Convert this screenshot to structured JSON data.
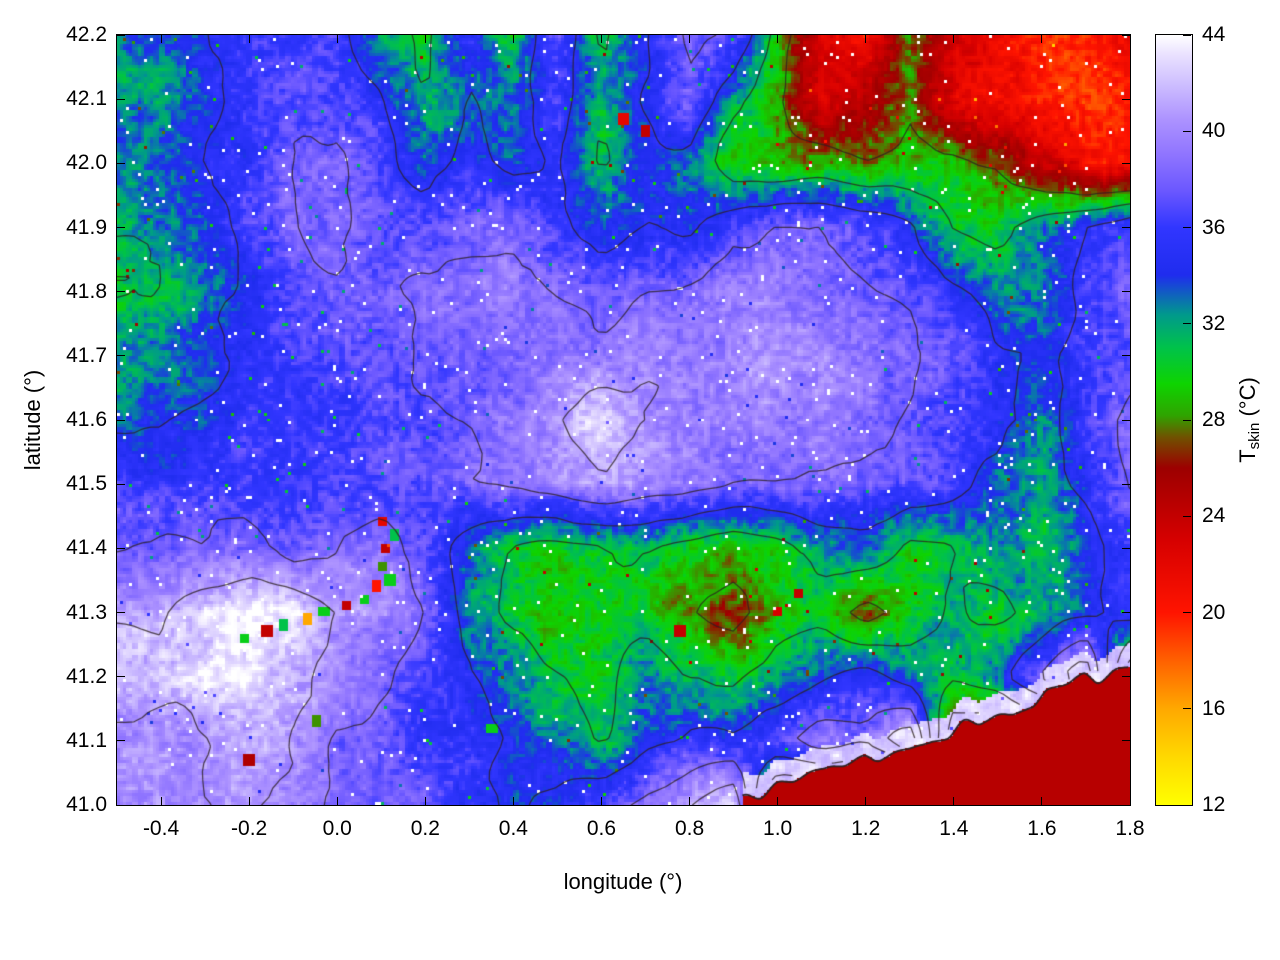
{
  "background": "#ffffff",
  "chart_data": {
    "type": "heatmap",
    "xlabel": "longitude (°)",
    "ylabel": "latitude (°)",
    "cblabel": {
      "prefix": "T",
      "sub": "skin",
      "suffix": " (°C)"
    },
    "xlim": [
      -0.5,
      1.8
    ],
    "ylim": [
      41.0,
      42.2
    ],
    "clim": [
      12,
      44
    ],
    "xticks": {
      "values": [
        -0.4,
        -0.2,
        0.0,
        0.2,
        0.4,
        0.6,
        0.8,
        1.0,
        1.2,
        1.4,
        1.6,
        1.8
      ],
      "labels": [
        "-0.4",
        "-0.2",
        "0.0",
        "0.2",
        "0.4",
        "0.6",
        "0.8",
        "1.0",
        "1.2",
        "1.4",
        "1.6",
        "1.8"
      ]
    },
    "yticks": {
      "values": [
        41.0,
        41.1,
        41.2,
        41.3,
        41.4,
        41.5,
        41.6,
        41.7,
        41.8,
        41.9,
        42.0,
        42.1,
        42.2
      ],
      "labels": [
        "41.0",
        "41.1",
        "41.2",
        "41.3",
        "41.4",
        "41.5",
        "41.6",
        "41.7",
        "41.8",
        "41.9",
        "42.0",
        "42.1",
        "42.2"
      ]
    },
    "cbticks": {
      "values": [
        12,
        16,
        20,
        24,
        28,
        32,
        36,
        40,
        44
      ],
      "labels": [
        "12",
        "16",
        "20",
        "24",
        "28",
        "32",
        "36",
        "40",
        "44"
      ]
    },
    "palette": [
      [
        12,
        "#ffff00"
      ],
      [
        14,
        "#ffd800"
      ],
      [
        16,
        "#ffa800"
      ],
      [
        18,
        "#ff6000"
      ],
      [
        20,
        "#ff1400"
      ],
      [
        23,
        "#d60000"
      ],
      [
        26,
        "#9c0000"
      ],
      [
        27.3,
        "#6f5200"
      ],
      [
        28.2,
        "#2fa400"
      ],
      [
        29.5,
        "#0ed400"
      ],
      [
        31,
        "#00c24a"
      ],
      [
        32.4,
        "#00998c"
      ],
      [
        34,
        "#1f2cee"
      ],
      [
        36,
        "#3136ff"
      ],
      [
        37.5,
        "#6a57ff"
      ],
      [
        39,
        "#8f74ff"
      ],
      [
        40.5,
        "#ad93ff"
      ],
      [
        42,
        "#cfc0ff"
      ],
      [
        43.2,
        "#eae2ff"
      ],
      [
        44,
        "#ffffff"
      ]
    ],
    "grid": {
      "lon0": -0.4,
      "dlon": 0.1,
      "lat_top": 42.2,
      "dlat": 0.1,
      "values": [
        [
          33,
          35,
          36,
          37,
          36,
          32,
          30,
          35,
          31,
          37,
          30,
          34,
          38,
          37,
          30,
          23,
          21,
          28,
          23,
          21,
          20,
          20,
          21
        ],
        [
          32,
          34,
          36,
          37,
          37,
          35,
          31,
          34,
          33,
          36,
          32,
          35,
          38,
          32,
          28,
          22,
          24,
          27,
          22,
          21,
          20,
          19,
          20
        ],
        [
          33,
          35,
          36,
          38,
          38,
          36,
          33,
          35,
          34,
          35,
          31,
          34,
          33,
          29,
          29,
          29,
          28,
          29,
          29,
          27,
          23,
          21,
          21
        ],
        [
          32,
          34,
          36,
          38,
          38,
          37,
          37,
          38,
          38,
          36,
          34,
          35,
          34,
          37,
          38,
          38,
          37,
          35,
          31,
          30,
          33,
          35,
          37
        ],
        [
          31,
          33,
          35,
          37,
          38,
          38,
          39,
          39,
          39,
          38,
          37,
          38,
          39,
          40,
          40,
          39,
          38,
          37,
          35,
          33,
          33,
          36,
          38
        ],
        [
          32,
          34,
          35,
          36,
          37,
          37,
          38,
          38,
          38,
          39,
          39,
          40,
          40,
          40,
          40,
          40,
          39,
          38,
          37,
          35,
          34,
          36,
          37
        ],
        [
          34,
          35,
          36,
          36,
          36,
          37,
          37,
          38,
          39,
          41,
          43,
          41,
          40,
          40,
          39,
          40,
          39,
          38,
          37,
          35,
          33,
          36,
          39
        ],
        [
          36,
          36,
          36,
          36,
          36,
          37,
          37,
          38,
          39,
          40,
          41,
          40,
          39,
          38,
          38,
          38,
          38,
          37,
          36,
          33,
          32,
          35,
          38
        ],
        [
          38,
          38,
          38,
          37,
          38,
          39,
          37,
          33,
          31,
          30,
          30,
          31,
          30,
          29,
          30,
          32,
          33,
          30,
          31,
          33,
          31,
          34,
          36
        ],
        [
          41,
          43,
          44,
          43,
          41,
          40,
          38,
          33,
          30,
          29,
          30,
          30,
          28,
          26,
          29,
          30,
          26,
          29,
          32,
          30,
          32,
          34,
          36
        ],
        [
          42,
          43,
          43,
          42,
          40,
          38,
          36,
          34,
          33,
          31,
          30,
          33,
          31,
          30,
          32,
          34,
          36,
          33,
          31,
          33,
          38,
          43,
          24
        ],
        [
          40,
          41,
          42,
          41,
          38,
          37,
          36,
          35,
          34,
          33,
          31,
          34,
          36,
          35,
          37,
          40,
          38,
          43,
          24,
          24,
          24,
          24,
          24
        ],
        [
          40,
          40,
          41,
          40,
          38,
          38,
          37,
          36,
          34,
          35,
          37,
          39,
          41,
          43,
          24,
          24,
          24,
          24,
          24,
          24,
          24,
          24,
          24
        ]
      ]
    },
    "coastline": {
      "from": [
        0.92,
        41.0
      ],
      "to": [
        1.8,
        41.22
      ],
      "sea_temp": 24.6,
      "shore_temp": 43
    },
    "anomalies": [
      [
        -0.21,
        41.26,
        30
      ],
      [
        -0.16,
        41.27,
        24
      ],
      [
        -0.12,
        41.28,
        31
      ],
      [
        -0.07,
        41.29,
        16
      ],
      [
        -0.03,
        41.3,
        30
      ],
      [
        0.02,
        41.31,
        24
      ],
      [
        0.06,
        41.32,
        30
      ],
      [
        0.09,
        41.34,
        20
      ],
      [
        0.12,
        41.35,
        30
      ],
      [
        0.1,
        41.37,
        28
      ],
      [
        0.11,
        41.4,
        24
      ],
      [
        0.13,
        41.42,
        31
      ],
      [
        0.1,
        41.44,
        22
      ],
      [
        0.65,
        42.07,
        22
      ],
      [
        0.7,
        42.05,
        24
      ],
      [
        -0.2,
        41.07,
        25
      ],
      [
        0.35,
        41.12,
        30
      ],
      [
        -0.05,
        41.13,
        28
      ],
      [
        1.0,
        41.3,
        23
      ],
      [
        1.05,
        41.33,
        24
      ],
      [
        0.78,
        41.27,
        24
      ]
    ],
    "contour_levels": [
      27.5,
      31,
      34.5,
      38,
      41
    ],
    "contour_color": "#2d2121"
  }
}
